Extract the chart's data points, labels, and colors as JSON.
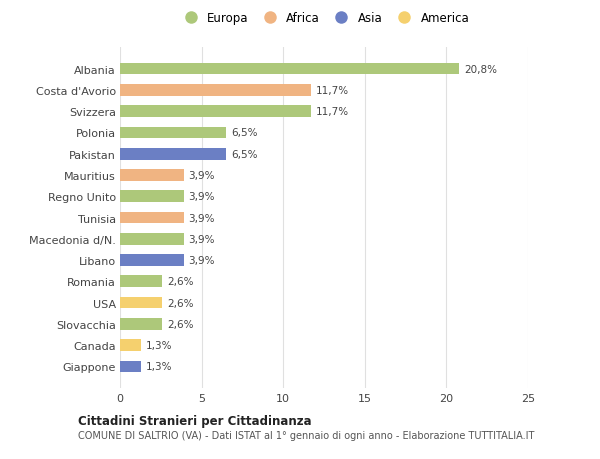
{
  "categories": [
    "Albania",
    "Costa d'Avorio",
    "Svizzera",
    "Polonia",
    "Pakistan",
    "Mauritius",
    "Regno Unito",
    "Tunisia",
    "Macedonia d/N.",
    "Libano",
    "Romania",
    "USA",
    "Slovacchia",
    "Canada",
    "Giappone"
  ],
  "values": [
    20.8,
    11.7,
    11.7,
    6.5,
    6.5,
    3.9,
    3.9,
    3.9,
    3.9,
    3.9,
    2.6,
    2.6,
    2.6,
    1.3,
    1.3
  ],
  "labels": [
    "20,8%",
    "11,7%",
    "11,7%",
    "6,5%",
    "6,5%",
    "3,9%",
    "3,9%",
    "3,9%",
    "3,9%",
    "3,9%",
    "2,6%",
    "2,6%",
    "2,6%",
    "1,3%",
    "1,3%"
  ],
  "continents": [
    "Europa",
    "Africa",
    "Europa",
    "Europa",
    "Asia",
    "Africa",
    "Europa",
    "Africa",
    "Europa",
    "Asia",
    "Europa",
    "America",
    "Europa",
    "America",
    "Asia"
  ],
  "colors": {
    "Europa": "#adc87a",
    "Africa": "#f0b482",
    "Asia": "#6b7fc4",
    "America": "#f5d06e"
  },
  "legend_labels": [
    "Europa",
    "Africa",
    "Asia",
    "America"
  ],
  "legend_colors": [
    "#adc87a",
    "#f0b482",
    "#6b7fc4",
    "#f5d06e"
  ],
  "title": "Cittadini Stranieri per Cittadinanza",
  "subtitle": "COMUNE DI SALTRIO (VA) - Dati ISTAT al 1° gennaio di ogni anno - Elaborazione TUTTITALIA.IT",
  "xlim": [
    0,
    25
  ],
  "xticks": [
    0,
    5,
    10,
    15,
    20,
    25
  ],
  "background_color": "#ffffff",
  "grid_color": "#e0e0e0",
  "bar_height": 0.55,
  "label_fontsize": 7.5,
  "ytick_fontsize": 8,
  "xtick_fontsize": 8
}
